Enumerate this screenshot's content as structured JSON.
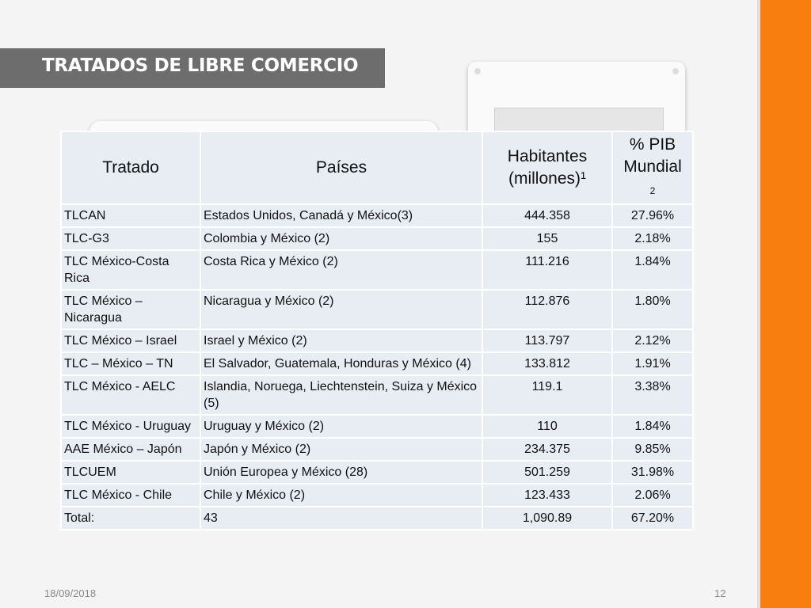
{
  "title": "TRATADOS DE LIBRE COMERCIO",
  "table": {
    "headers": {
      "tratado": "Tratado",
      "paises": "Países",
      "habitantes_line1": "Habitantes",
      "habitantes_line2": "(millones)¹",
      "pib_line1": "% PIB",
      "pib_line2": "Mundial",
      "pib_sup": "2"
    },
    "rows": [
      {
        "tratado": "TLCAN",
        "paises": "Estados Unidos, Canadá y México(3)",
        "habitantes": "444.358",
        "pib": "27.96%"
      },
      {
        "tratado": "TLC-G3",
        "paises": "Colombia y México (2)",
        "habitantes": "155",
        "pib": "2.18%"
      },
      {
        "tratado": "TLC México-Costa Rica",
        "paises": "Costa Rica y México (2)",
        "habitantes": "111.216",
        "pib": "1.84%"
      },
      {
        "tratado": "TLC México – Nicaragua",
        "paises": "Nicaragua y México (2)",
        "habitantes": "112.876",
        "pib": "1.80%"
      },
      {
        "tratado": "TLC México – Israel",
        "paises": "Israel y México (2)",
        "habitantes": "113.797",
        "pib": "2.12%"
      },
      {
        "tratado": "TLC – México – TN",
        "paises": "El Salvador, Guatemala, Honduras y México (4)",
        "habitantes": "133.812",
        "pib": "1.91%"
      },
      {
        "tratado": "TLC México - AELC",
        "paises": "Islandia, Noruega, Liechtenstein, Suiza y México (5)",
        "habitantes": "119.1",
        "pib": "3.38%"
      },
      {
        "tratado": "TLC México - Uruguay",
        "paises": "Uruguay y México (2)",
        "habitantes": "110",
        "pib": "1.84%"
      },
      {
        "tratado": "AAE México – Japón",
        "paises": "Japón y México (2)",
        "habitantes": "234.375",
        "pib": "9.85%"
      },
      {
        "tratado": "TLCUEM",
        "paises": "Unión Europea y México (28)",
        "habitantes": "501.259",
        "pib": "31.98%"
      },
      {
        "tratado": "TLC México - Chile",
        "paises": "Chile y México (2)",
        "habitantes": "123.433",
        "pib": "2.06%"
      },
      {
        "tratado": "Total:",
        "paises": "43",
        "habitantes": "1,090.89",
        "pib": "67.20%"
      }
    ]
  },
  "footer": {
    "date": "18/09/2018",
    "page": "12"
  },
  "colors": {
    "accent": "#f77e0f",
    "title_band": "#6d6d6d",
    "table_cell": "#e8ecf3"
  }
}
